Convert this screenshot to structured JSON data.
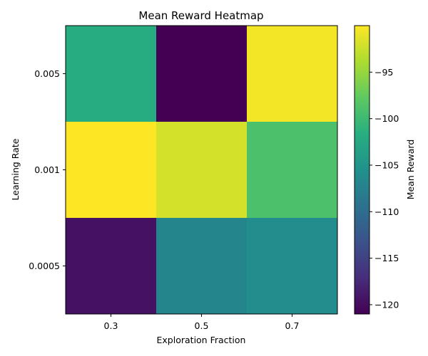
{
  "chart_data": {
    "type": "heatmap",
    "title": "Mean Reward Heatmap",
    "xlabel": "Exploration Fraction",
    "ylabel": "Learning Rate",
    "x_categories": [
      "0.3",
      "0.5",
      "0.7"
    ],
    "y_categories": [
      "0.005",
      "0.001",
      "0.0005"
    ],
    "values": [
      [
        -102,
        -121,
        -90.5
      ],
      [
        -90,
        -92,
        -99
      ],
      [
        -119.5,
        -107,
        -106
      ]
    ],
    "colorbar": {
      "label": "Mean Reward",
      "range": [
        -121,
        -90
      ],
      "ticks": [
        -95,
        -100,
        -105,
        -110,
        -115,
        -120
      ],
      "tick_labels": [
        "−95",
        "−100",
        "−105",
        "−110",
        "−115",
        "−120"
      ],
      "colormap": "viridis"
    }
  }
}
